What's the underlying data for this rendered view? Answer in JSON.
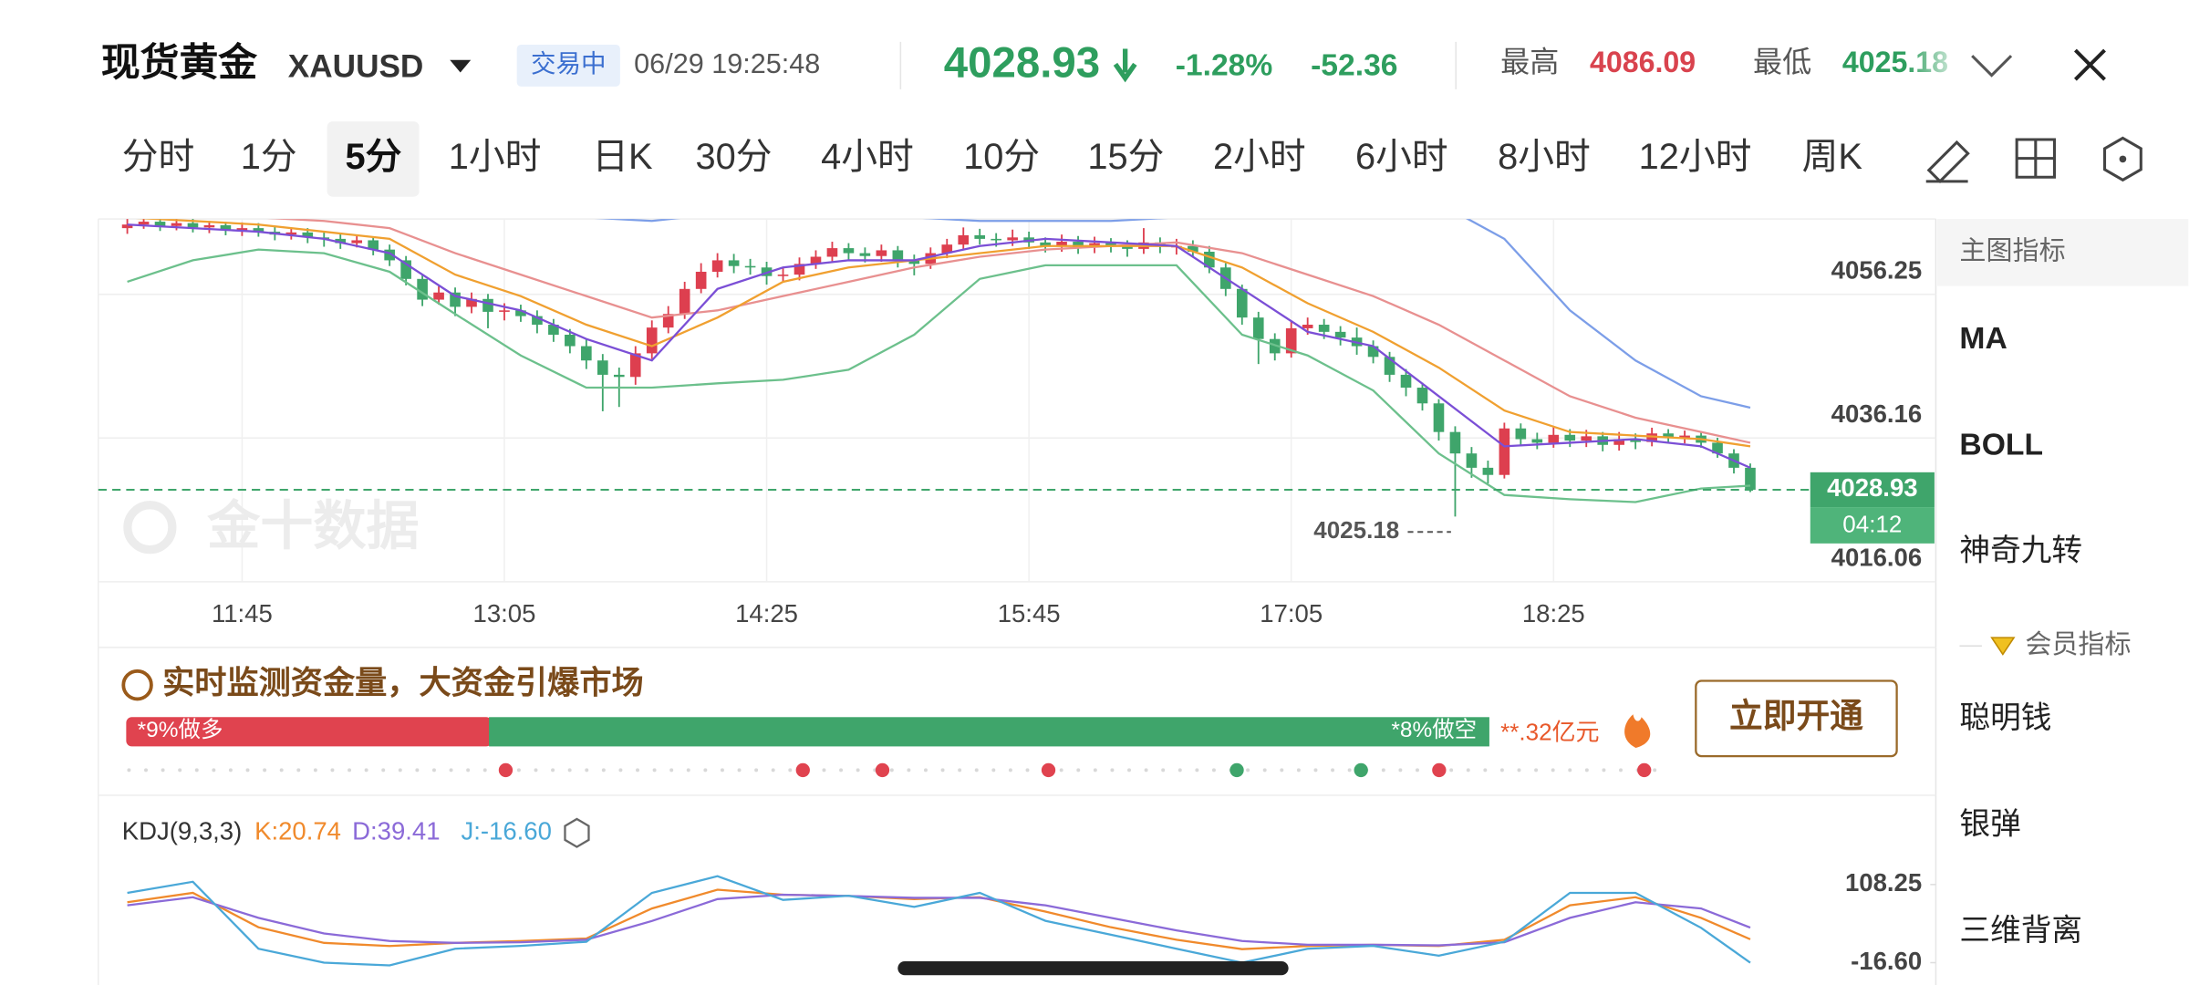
{
  "header": {
    "title": "现货黄金",
    "symbol": "XAUUSD",
    "status": "交易中",
    "time": "06/29 19:25:48",
    "price": "4028.93",
    "change_pct": "-1.28%",
    "change": "-52.36",
    "high_label": "最高",
    "high": "4086.09",
    "low_label": "最低",
    "low": "4025.18"
  },
  "tabs": [
    "分时",
    "1分",
    "5分",
    "1小时",
    "日K",
    "30分",
    "4小时",
    "10分",
    "15分",
    "2小时",
    "6小时",
    "8小时",
    "12小时",
    "周K"
  ],
  "active_tab": 2,
  "chart_data": [
    {
      "type": "candlestick",
      "categories": [
        null,
        null,
        null,
        null,
        null,
        null,
        null,
        "11:45",
        null,
        null,
        null,
        null,
        null,
        null,
        null,
        null,
        null,
        null,
        null,
        null,
        null,
        null,
        null,
        "13:05",
        null,
        null,
        null,
        null,
        null,
        null,
        null,
        null,
        null,
        null,
        null,
        null,
        null,
        null,
        null,
        "14:25",
        null,
        null,
        null,
        null,
        null,
        null,
        null,
        null,
        null,
        null,
        null,
        null,
        null,
        null,
        null,
        "15:45",
        null,
        null,
        null,
        null,
        null,
        null,
        null,
        null,
        null,
        null,
        null,
        null,
        null,
        null,
        null,
        "17:05",
        null,
        null,
        null,
        null,
        null,
        null,
        null,
        null,
        null,
        null,
        null,
        null,
        null,
        null,
        null,
        "18:25",
        null,
        null,
        null,
        null,
        null,
        null,
        null,
        null,
        null,
        null,
        null,
        null
      ],
      "open": [
        4065.5,
        4066.0,
        4066.4,
        4065.8,
        4066.2,
        4065.6,
        4065.9,
        4065.2,
        4065.5,
        4065.0,
        4064.6,
        4064.9,
        4064.2,
        4064.0,
        4063.4,
        4063.8,
        4062.5,
        4061.0,
        4058.4,
        4055.5,
        4056.5,
        4054.5,
        4055.6,
        4053.8,
        4054.0,
        4053.2,
        4052.0,
        4050.6,
        4049.0,
        4047.0,
        4045.0,
        4044.7,
        4048.0,
        4051.6,
        4053.5,
        4057.0,
        4059.4,
        4061.0,
        4060.2,
        4060.0,
        4058.8,
        4059.0,
        4060.5,
        4061.5,
        4062.7,
        4062.0,
        4061.6,
        4062.4,
        4061.0,
        4060.5,
        4062.0,
        4063.2,
        4064.5,
        4064.0,
        4063.8,
        4064.2,
        4063.5,
        4063.0,
        4063.6,
        4062.8,
        4063.4,
        4063.0,
        4062.6,
        4063.5,
        4062.9,
        4063.0,
        4062.2,
        4060.0,
        4057.0,
        4053.0,
        4050.0,
        4048.0,
        4051.5,
        4052.0,
        4051.0,
        4050.2,
        4049.0,
        4047.5,
        4045.0,
        4043.2,
        4041.0,
        4037.0,
        4034.0,
        4032.0,
        4031.0,
        4037.5,
        4036.0,
        4035.5,
        4036.6,
        4035.8,
        4036.4,
        4035.2,
        4036.0,
        4035.6,
        4036.8,
        4036.2,
        4036.5,
        4035.5,
        4034.0,
        4032.0
      ],
      "high": [
        4066.8,
        4067.1,
        4067.0,
        4066.9,
        4066.8,
        4066.5,
        4066.4,
        4066.3,
        4066.2,
        4065.8,
        4065.6,
        4065.5,
        4065.0,
        4064.8,
        4064.6,
        4064.3,
        4063.2,
        4061.6,
        4059.0,
        4057.4,
        4057.2,
        4056.5,
        4056.3,
        4055.0,
        4054.8,
        4054.0,
        4052.8,
        4051.4,
        4050.0,
        4047.9,
        4046.0,
        4049.0,
        4052.6,
        4054.6,
        4058.0,
        4060.6,
        4062.0,
        4061.9,
        4061.2,
        4060.8,
        4060.0,
        4061.4,
        4062.4,
        4063.6,
        4063.4,
        4062.8,
        4063.2,
        4063.0,
        4061.8,
        4062.8,
        4064.0,
        4065.6,
        4065.4,
        4064.8,
        4065.3,
        4065.0,
        4064.2,
        4064.6,
        4064.4,
        4064.3,
        4064.1,
        4063.8,
        4065.5,
        4064.2,
        4064.0,
        4063.8,
        4063.0,
        4060.6,
        4057.6,
        4053.8,
        4050.8,
        4052.6,
        4053.0,
        4052.8,
        4051.8,
        4051.6,
        4049.8,
        4048.2,
        4045.8,
        4043.9,
        4041.6,
        4037.8,
        4034.9,
        4033.0,
        4038.3,
        4038.2,
        4036.9,
        4037.7,
        4037.4,
        4037.3,
        4037.0,
        4037.0,
        4036.8,
        4037.6,
        4037.4,
        4037.2,
        4037.0,
        4036.2,
        4034.6,
        4032.6
      ],
      "low": [
        4064.7,
        4065.4,
        4065.1,
        4065.2,
        4064.9,
        4064.8,
        4064.5,
        4064.4,
        4064.3,
        4063.8,
        4063.9,
        4063.4,
        4062.9,
        4062.6,
        4062.8,
        4061.7,
        4060.2,
        4057.5,
        4054.6,
        4054.8,
        4053.2,
        4053.6,
        4051.5,
        4052.6,
        4052.4,
        4050.8,
        4049.6,
        4048.0,
        4045.8,
        4039.9,
        4040.5,
        4043.6,
        4047.2,
        4050.8,
        4052.8,
        4056.4,
        4058.6,
        4059.2,
        4059.0,
        4057.6,
        4057.9,
        4058.2,
        4059.8,
        4060.8,
        4061.0,
        4060.7,
        4060.8,
        4060.0,
        4058.9,
        4059.8,
        4061.3,
        4062.6,
        4063.2,
        4062.9,
        4063.0,
        4062.6,
        4062.1,
        4062.2,
        4061.9,
        4062.0,
        4062.1,
        4061.5,
        4061.9,
        4062.0,
        4061.8,
        4061.4,
        4059.2,
        4056.0,
        4052.0,
        4046.5,
        4047.0,
        4047.4,
        4050.6,
        4050.0,
        4049.1,
        4047.8,
        4046.6,
        4044.0,
        4042.0,
        4040.0,
        4035.8,
        4025.18,
        4030.6,
        4029.8,
        4030.5,
        4035.0,
        4034.6,
        4034.8,
        4034.9,
        4034.9,
        4034.3,
        4034.4,
        4034.6,
        4035.0,
        4035.4,
        4035.4,
        4034.8,
        4033.4,
        4031.2,
        4028.6
      ],
      "close": [
        4066.0,
        4066.4,
        4065.8,
        4066.2,
        4065.6,
        4065.9,
        4065.2,
        4065.5,
        4065.0,
        4064.6,
        4064.9,
        4064.2,
        4064.0,
        4063.4,
        4063.8,
        4062.5,
        4061.0,
        4058.4,
        4055.5,
        4056.5,
        4054.5,
        4055.6,
        4053.8,
        4054.0,
        4053.2,
        4052.0,
        4050.6,
        4049.0,
        4047.0,
        4045.0,
        4044.7,
        4048.0,
        4051.6,
        4053.5,
        4057.0,
        4059.4,
        4061.0,
        4060.2,
        4060.0,
        4058.8,
        4059.0,
        4060.5,
        4061.5,
        4062.7,
        4062.0,
        4061.6,
        4062.4,
        4061.0,
        4060.5,
        4062.0,
        4063.2,
        4064.5,
        4064.0,
        4063.8,
        4064.2,
        4063.5,
        4063.0,
        4063.6,
        4062.8,
        4063.4,
        4063.0,
        4062.6,
        4063.5,
        4062.9,
        4063.0,
        4062.2,
        4060.0,
        4057.0,
        4053.0,
        4050.0,
        4048.0,
        4051.5,
        4052.0,
        4051.0,
        4050.2,
        4049.0,
        4047.5,
        4045.0,
        4043.2,
        4041.0,
        4037.0,
        4034.0,
        4032.0,
        4031.0,
        4037.5,
        4036.0,
        4035.5,
        4036.6,
        4035.8,
        4036.4,
        4035.2,
        4036.0,
        4035.6,
        4036.8,
        4036.2,
        4036.5,
        4035.5,
        4034.0,
        4032.0,
        4028.93
      ],
      "up_color": "#dd3f4f",
      "down_color": "#3fa56b",
      "overlays": {
        "x": [
          0,
          4,
          8,
          12,
          16,
          20,
          24,
          28,
          32,
          36,
          40,
          44,
          48,
          52,
          56,
          60,
          64,
          68,
          72,
          76,
          80,
          84,
          88,
          92,
          96,
          99
        ],
        "series": [
          {
            "color": "#e89090",
            "values": [
              4068,
              4067,
              4067,
              4066.5,
              4065.5,
              4062,
              4059,
              4056,
              4053,
              4054,
              4056,
              4058,
              4060,
              4061.5,
              4062.5,
              4063,
              4063.5,
              4062,
              4059,
              4056,
              4052,
              4047,
              4042,
              4039,
              4037,
              4035.5
            ]
          },
          {
            "color": "#f0a030",
            "values": [
              4067,
              4066.5,
              4066,
              4065,
              4064,
              4059,
              4056,
              4052,
              4049,
              4053,
              4058,
              4060,
              4061,
              4062,
              4063,
              4063,
              4063,
              4060,
              4055,
              4051,
              4046,
              4040,
              4037,
              4036.5,
              4036,
              4035
            ]
          },
          {
            "color": "#7b4fd6",
            "values": [
              4066,
              4065.5,
              4065,
              4064,
              4062,
              4056,
              4054,
              4050,
              4047,
              4057,
              4060,
              4061,
              4061,
              4063,
              4064,
              4063.5,
              4063,
              4057,
              4051,
              4049,
              4042,
              4035,
              4035.5,
              4036,
              4035,
              4032
            ]
          },
          {
            "color": "#7c9ee8",
            "values": [
              4074,
              4073,
              4072,
              4071,
              4070,
              4069,
              4068,
              4067,
              4066.5,
              4067.5,
              4069,
              4068,
              4067,
              4066.5,
              4066.5,
              4066.5,
              4067,
              4070,
              4071,
              4070,
              4069,
              4064,
              4054,
              4047,
              4042,
              4040.4
            ]
          },
          {
            "color": "#6cc08c",
            "values": [
              4058,
              4061,
              4062.5,
              4062,
              4059.4,
              4053.5,
              4047.7,
              4043.2,
              4043.2,
              4043.8,
              4044.3,
              4045.7,
              4050.6,
              4058.4,
              4060.3,
              4060.3,
              4060.3,
              4050.6,
              4047.7,
              4042.8,
              4034,
              4028.2,
              4027.6,
              4027.2,
              4029.1,
              4029.5
            ]
          }
        ]
      },
      "xlim": [
        -1.77,
        110.32
      ],
      "ylim": [
        4016.06,
        4066.77
      ],
      "yticks": [
        4056.25,
        4036.16,
        4016.06
      ],
      "grid": true,
      "last_price": 4028.93,
      "countdown": "04:12",
      "low_annotation": {
        "value": 4025.18
      },
      "watermark": "金十数据"
    },
    {
      "type": "line",
      "title": "KDJ(9,3,3)",
      "x": [
        0,
        4,
        8,
        12,
        16,
        20,
        24,
        28,
        32,
        36,
        40,
        44,
        48,
        52,
        56,
        60,
        64,
        68,
        72,
        76,
        80,
        84,
        88,
        92,
        96,
        99
      ],
      "series": [
        {
          "name": "K:20.74",
          "color": "#f08a2c",
          "values": [
            80,
            95,
            40,
            15,
            10,
            15,
            18,
            22,
            70,
            100,
            92,
            90,
            85,
            88,
            65,
            40,
            20,
            5,
            10,
            12,
            10,
            20,
            75,
            88,
            55,
            20.74
          ]
        },
        {
          "name": "D:39.41",
          "color": "#8b6ad8",
          "values": [
            75,
            88,
            55,
            30,
            18,
            15,
            16,
            20,
            50,
            85,
            92,
            90,
            87,
            87,
            75,
            55,
            35,
            18,
            12,
            12,
            11,
            16,
            55,
            80,
            70,
            39.41
          ]
        },
        {
          "name": "J:-16.60",
          "color": "#4aa8d8",
          "values": [
            94.9,
            112.7,
            5.7,
            -16.6,
            -21,
            5.7,
            10.2,
            16.8,
            94.9,
            121.6,
            83.7,
            90.4,
            72.6,
            94.9,
            50.3,
            28,
            5.7,
            -16.6,
            5.7,
            10.2,
            -5.5,
            16.8,
            94.9,
            94.9,
            39.1,
            -16.6
          ]
        }
      ],
      "xlim": [
        -1.77,
        110.32
      ],
      "ylim": [
        -52.3,
        135
      ],
      "yticks": [
        108.25,
        {
          "value": -16.6,
          "label": "-16.60"
        }
      ]
    }
  ],
  "fund_flow": {
    "title": "实时监测资金量，大资金引爆市场",
    "long_label": "*9%做多",
    "short_label": "*8%做空",
    "amount": "**.32亿元",
    "button": "立即开通"
  },
  "side_panel": {
    "header": "主图指标",
    "items": [
      "MA",
      "BOLL",
      "神奇九转"
    ],
    "member_header": "会员指标",
    "member_items": [
      "聪明钱",
      "银弹",
      "三维背离"
    ]
  }
}
